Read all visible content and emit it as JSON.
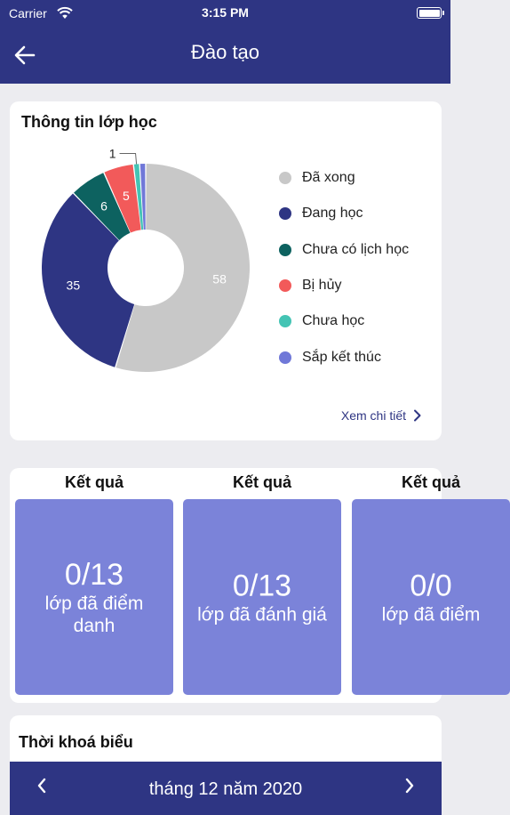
{
  "status_bar": {
    "carrier": "Carrier",
    "time": "3:15 PM"
  },
  "nav": {
    "title": "Đào tạo"
  },
  "class_info": {
    "title": "Thông tin lớp học",
    "detail_link": "Xem chi tiết",
    "legend": [
      {
        "label": "Đã xong",
        "color": "#c8c8c8"
      },
      {
        "label": "Đang học",
        "color": "#2e3583"
      },
      {
        "label": "Chưa có lịch học",
        "color": "#0d6260"
      },
      {
        "label": "Bị hủy",
        "color": "#f25a5a"
      },
      {
        "label": "Chưa học",
        "color": "#44c4b4"
      },
      {
        "label": "Sắp kết thúc",
        "color": "#7078d8"
      }
    ]
  },
  "chart_data": {
    "type": "pie",
    "categories": [
      "Đã xong",
      "Đang học",
      "Chưa có lịch học",
      "Bị hủy",
      "Chưa học",
      "Sắp kết thúc"
    ],
    "values": [
      58,
      35,
      6,
      5,
      1,
      1
    ],
    "data_labels": [
      "58",
      "35",
      "6",
      "5",
      "1",
      ""
    ],
    "colors": [
      "#c8c8c8",
      "#2e3583",
      "#0d6260",
      "#f25a5a",
      "#44c4b4",
      "#7078d8"
    ],
    "donut": true
  },
  "results": [
    {
      "heading": "Kết quả",
      "value": "0/13",
      "label": "lớp đã điểm danh"
    },
    {
      "heading": "Kết quả",
      "value": "0/13",
      "label": "lớp đã đánh giá"
    },
    {
      "heading": "Kết quả",
      "value": "0/0",
      "label": "lớp đã điểm"
    }
  ],
  "timetable": {
    "title": "Thời khoá biểu",
    "month_label": "tháng 12 năm 2020"
  }
}
